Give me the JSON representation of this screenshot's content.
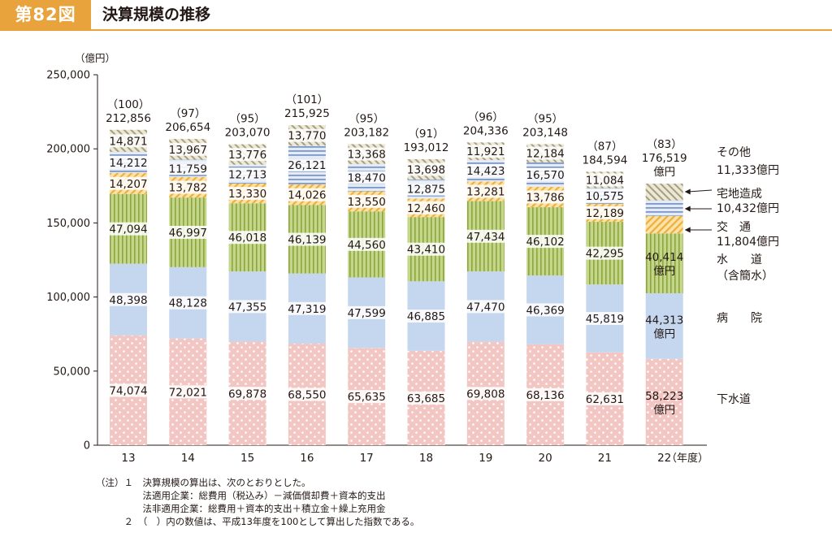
{
  "header": {
    "figure_number": "第82図",
    "title": "決算規模の推移"
  },
  "chart_data": {
    "type": "bar",
    "stacked": true,
    "ylabel": "（億円）",
    "xlabel": "（年度）",
    "ylim": [
      0,
      250000
    ],
    "y_ticks": [
      "250,000",
      "200,000",
      "150,000",
      "100,000",
      "50,000",
      "0"
    ],
    "y_tick_values": [
      250000,
      200000,
      150000,
      100000,
      50000,
      0
    ],
    "categories": [
      "13",
      "14",
      "15",
      "16",
      "17",
      "18",
      "19",
      "20",
      "21",
      "22"
    ],
    "totals": [
      212856,
      206654,
      203070,
      215925,
      203182,
      193012,
      204336,
      203148,
      184594,
      176519
    ],
    "total_labels": [
      "212,856",
      "206,654",
      "203,070",
      "215,925",
      "203,182",
      "193,012",
      "204,336",
      "203,148",
      "184,594",
      "176,519"
    ],
    "total_unit": "億円",
    "index_labels": [
      "（100）",
      "（97）",
      "（95）",
      "（101）",
      "（95）",
      "（91）",
      "（96）",
      "（95）",
      "（87）",
      "（83）"
    ],
    "series": [
      {
        "name": "下水道",
        "color": "#f2c6c2",
        "pattern": "dots",
        "values": [
          74074,
          72021,
          69878,
          68550,
          65635,
          63685,
          69808,
          68136,
          62631,
          58223
        ],
        "labels": [
          "74,074",
          "72,021",
          "69,878",
          "68,550",
          "65,635",
          "63,685",
          "69,808",
          "68,136",
          "62,631",
          "58,223"
        ]
      },
      {
        "name": "病院",
        "color": "#c5d6ef",
        "pattern": "solid",
        "values": [
          48398,
          48128,
          47355,
          47319,
          47599,
          46885,
          47470,
          46369,
          45819,
          44313
        ],
        "labels": [
          "48,398",
          "48,128",
          "47,355",
          "47,319",
          "47,599",
          "46,885",
          "47,470",
          "46,369",
          "45,819",
          "44,313"
        ]
      },
      {
        "name": "水道（含簡水）",
        "color": "#b9cc7a",
        "pattern": "vstripes",
        "values": [
          47094,
          46997,
          46018,
          46139,
          44560,
          43410,
          47434,
          46102,
          42295,
          40414
        ],
        "labels": [
          "47,094",
          "46,997",
          "46,018",
          "46,139",
          "44,560",
          "43,410",
          "47,434",
          "46,102",
          "42,295",
          "40,414"
        ]
      },
      {
        "name": "交通",
        "color": "#f3c870",
        "pattern": "diag",
        "values": [
          14207,
          13782,
          13330,
          14026,
          13550,
          12460,
          13281,
          13786,
          12189,
          11804
        ],
        "labels": [
          "14,207",
          "13,782",
          "13,330",
          "14,026",
          "13,550",
          "12,460",
          "13,281",
          "13,786",
          "12,189",
          "11,804"
        ]
      },
      {
        "name": "宅地造成",
        "color": "#aec0e0",
        "pattern": "hstripes",
        "values": [
          14212,
          11759,
          12713,
          26121,
          18470,
          12875,
          14423,
          16570,
          10575,
          10432
        ],
        "labels": [
          "14,212",
          "11,759",
          "12,713",
          "26,121",
          "18,470",
          "12,875",
          "14,423",
          "16,570",
          "10,575",
          "10,432"
        ]
      },
      {
        "name": "その他",
        "color": "#c9c3a8",
        "pattern": "diag2",
        "values": [
          14871,
          13967,
          13776,
          13770,
          13368,
          13698,
          11921,
          12184,
          11084,
          11333
        ],
        "labels": [
          "14,871",
          "13,967",
          "13,776",
          "13,770",
          "13,368",
          "13,698",
          "11,921",
          "12,184",
          "11,084",
          "11,333"
        ]
      }
    ],
    "last_bar_unit_label": "億円",
    "legend": [
      {
        "line1": "その他",
        "line2": "11,333億円"
      },
      {
        "line1": "宅地造成",
        "line2": "10,432億円"
      },
      {
        "line1": "交　通",
        "line2": "11,804億円"
      },
      {
        "line1": "水　　道",
        "line2": "（含簡水）"
      },
      {
        "line1": "病　　院",
        "line2": ""
      },
      {
        "line1": "下水道",
        "line2": ""
      }
    ]
  },
  "notes": [
    "（注）１　決算規模の算出は、次のとおりとした。",
    "　　　　　法適用企業：総費用（税込み）－減価償却費＋資本的支出",
    "　　　　　法非適用企業：総費用＋資本的支出＋積立金＋繰上充用金",
    "　　　２　（　）内の数値は、平成13年度を100として算出した指数である。"
  ]
}
